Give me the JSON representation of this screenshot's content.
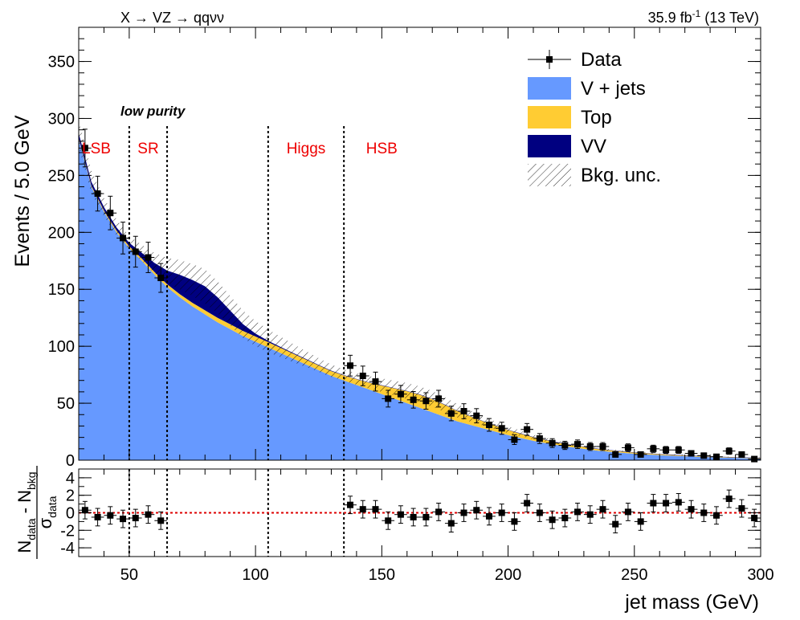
{
  "header": {
    "process": "X → VZ → qqνν",
    "lumi": "35.9 fb",
    "lumi_sup": "-1",
    "energy": "(13 TeV)"
  },
  "category": "low purity",
  "regions": [
    {
      "label": "LSB",
      "x": 37
    },
    {
      "label": "SR",
      "x": 57.5
    },
    {
      "label": "Higgs",
      "x": 120
    },
    {
      "label": "HSB",
      "x": 150
    }
  ],
  "legend": {
    "position": "top-right",
    "items": [
      {
        "label": "Data",
        "kind": "marker"
      },
      {
        "label": "V + jets",
        "kind": "fill",
        "color": "#6699ff"
      },
      {
        "label": "Top",
        "kind": "fill",
        "color": "#ffcc33"
      },
      {
        "label": "VV",
        "kind": "fill",
        "color": "#000080"
      },
      {
        "label": "Bkg. unc.",
        "kind": "hatch"
      }
    ]
  },
  "colors": {
    "vjets": "#6699ff",
    "top": "#ffcc33",
    "vv": "#000080",
    "region_text": "#ee0000",
    "ratio_line": "#dd0000"
  },
  "chart_data": [
    {
      "type": "area",
      "title": "",
      "xlabel": "jet mass (GeV)",
      "ylabel": "Events / 5.0 GeV",
      "xlim": [
        30,
        300
      ],
      "ylim": [
        0,
        380
      ],
      "xticks": [
        50,
        100,
        150,
        200,
        250,
        300
      ],
      "yticks": [
        0,
        50,
        100,
        150,
        200,
        250,
        300,
        350
      ],
      "region_boundaries": [
        50,
        65,
        105,
        135
      ],
      "background": {
        "x": [
          30,
          35,
          40,
          45,
          50,
          55,
          60,
          65,
          70,
          75,
          80,
          85,
          90,
          95,
          100,
          105,
          110,
          115,
          120,
          125,
          130,
          135,
          140,
          145,
          150,
          155,
          160,
          165,
          170,
          175,
          180,
          185,
          190,
          195,
          200,
          205,
          210,
          215,
          220,
          225,
          230,
          235,
          240,
          245,
          250,
          255,
          260,
          265,
          270,
          275,
          280,
          285,
          290,
          295,
          300
        ],
        "vjets": [
          282,
          240,
          218,
          200,
          186,
          175,
          163,
          152,
          143,
          135,
          128,
          121,
          115,
          109,
          104,
          99,
          94,
          89,
          84,
          79,
          74,
          70,
          66,
          62,
          58,
          54,
          50,
          46,
          42,
          38,
          34,
          31,
          28,
          25,
          22,
          19.5,
          17,
          15,
          13,
          11.5,
          10,
          8.5,
          7.5,
          6.5,
          5.6,
          5,
          4.4,
          3.9,
          3.4,
          3,
          2.6,
          2.3,
          2,
          1.8,
          1.6
        ],
        "top": [
          1,
          1,
          1.2,
          1.5,
          1.8,
          2,
          2.2,
          2.5,
          2.8,
          3.2,
          3.6,
          4,
          4.3,
          4.5,
          4.6,
          4.6,
          4.5,
          4.4,
          4.3,
          4.2,
          4.2,
          4.4,
          5,
          6,
          7.5,
          9,
          10.5,
          11.5,
          11.5,
          10.5,
          9,
          7.5,
          6.2,
          5.2,
          4.4,
          3.7,
          3.1,
          2.6,
          2.2,
          1.9,
          1.6,
          1.4,
          1.2,
          1.1,
          1,
          0.9,
          0.8,
          0.7,
          0.6,
          0.5,
          0.45,
          0.4,
          0.35,
          0.3,
          0.3
        ],
        "vv": [
          4,
          3.5,
          3,
          2.8,
          3,
          5,
          8,
          12,
          17,
          20,
          21,
          18,
          12,
          6,
          2.5,
          1.2,
          0.8,
          0.6,
          0.5,
          0.4,
          0.4,
          0.3,
          0.3,
          0.3,
          0.3,
          0.3,
          0.3,
          0.3,
          0.3,
          0.3,
          0.3,
          0.3,
          0.3,
          0.3,
          0.3,
          0.3,
          0.3,
          0.3,
          0.3,
          0.3,
          0.3,
          0.3,
          0.3,
          0.3,
          0.3,
          0.3,
          0.3,
          0.3,
          0.3,
          0.3,
          0.3,
          0.3,
          0.3,
          0.3,
          0.3
        ],
        "unc": [
          12,
          10,
          8,
          7,
          6,
          7,
          9,
          11,
          13,
          14,
          15,
          14,
          13,
          12,
          11,
          10,
          9,
          8,
          7,
          6,
          5.5,
          5,
          5,
          5.5,
          6,
          6.5,
          7,
          7,
          7,
          6.5,
          6,
          5,
          4,
          3.5,
          3,
          2.5,
          2,
          1.8,
          1.6,
          1.4,
          1.2,
          1,
          0.9,
          0.8,
          0.7,
          0.6,
          0.5,
          0.5,
          0.4,
          0.4,
          0.4,
          0.3,
          0.3,
          0.3,
          0.3
        ]
      },
      "data": {
        "x": [
          32.5,
          37.5,
          42.5,
          47.5,
          52.5,
          57.5,
          62.5,
          137.5,
          142.5,
          147.5,
          152.5,
          157.5,
          162.5,
          167.5,
          172.5,
          177.5,
          182.5,
          187.5,
          192.5,
          197.5,
          202.5,
          207.5,
          212.5,
          217.5,
          222.5,
          227.5,
          232.5,
          237.5,
          242.5,
          247.5,
          252.5,
          257.5,
          262.5,
          267.5,
          272.5,
          277.5,
          282.5,
          287.5,
          292.5,
          297.5
        ],
        "y": [
          274,
          234,
          217,
          195,
          183,
          178,
          160,
          83,
          74,
          69,
          54,
          58,
          53,
          52,
          54,
          41,
          43,
          39,
          31,
          28,
          18,
          27,
          19,
          15,
          13,
          14,
          12,
          12,
          5,
          11,
          5,
          10,
          9,
          9,
          6,
          4,
          3,
          8,
          5,
          1
        ]
      }
    },
    {
      "type": "scatter",
      "title": "",
      "xlabel": "jet mass (GeV)",
      "ylabel": "(N_data - N_bkg) / σ_data",
      "xlim": [
        30,
        300
      ],
      "ylim": [
        -5,
        5
      ],
      "yticks": [
        -4,
        -2,
        0,
        2,
        4
      ],
      "reference_line": 0,
      "x": [
        32.5,
        37.5,
        42.5,
        47.5,
        52.5,
        57.5,
        62.5,
        137.5,
        142.5,
        147.5,
        152.5,
        157.5,
        162.5,
        167.5,
        172.5,
        177.5,
        182.5,
        187.5,
        192.5,
        197.5,
        202.5,
        207.5,
        212.5,
        217.5,
        222.5,
        227.5,
        232.5,
        237.5,
        242.5,
        247.5,
        252.5,
        257.5,
        262.5,
        267.5,
        272.5,
        277.5,
        282.5,
        287.5,
        292.5,
        297.5
      ],
      "y": [
        0.3,
        -0.5,
        -0.3,
        -0.7,
        -0.6,
        -0.2,
        -0.9,
        0.9,
        0.4,
        0.4,
        -0.9,
        -0.2,
        -0.5,
        -0.5,
        0.1,
        -1.2,
        0.0,
        0.3,
        -0.4,
        0.0,
        -1.0,
        1.1,
        0.0,
        -0.8,
        -0.6,
        0.1,
        -0.2,
        0.4,
        -1.3,
        0.1,
        -1.0,
        1.1,
        1.1,
        1.2,
        0.4,
        0.0,
        -0.3,
        1.6,
        0.5,
        -0.6
      ]
    }
  ]
}
